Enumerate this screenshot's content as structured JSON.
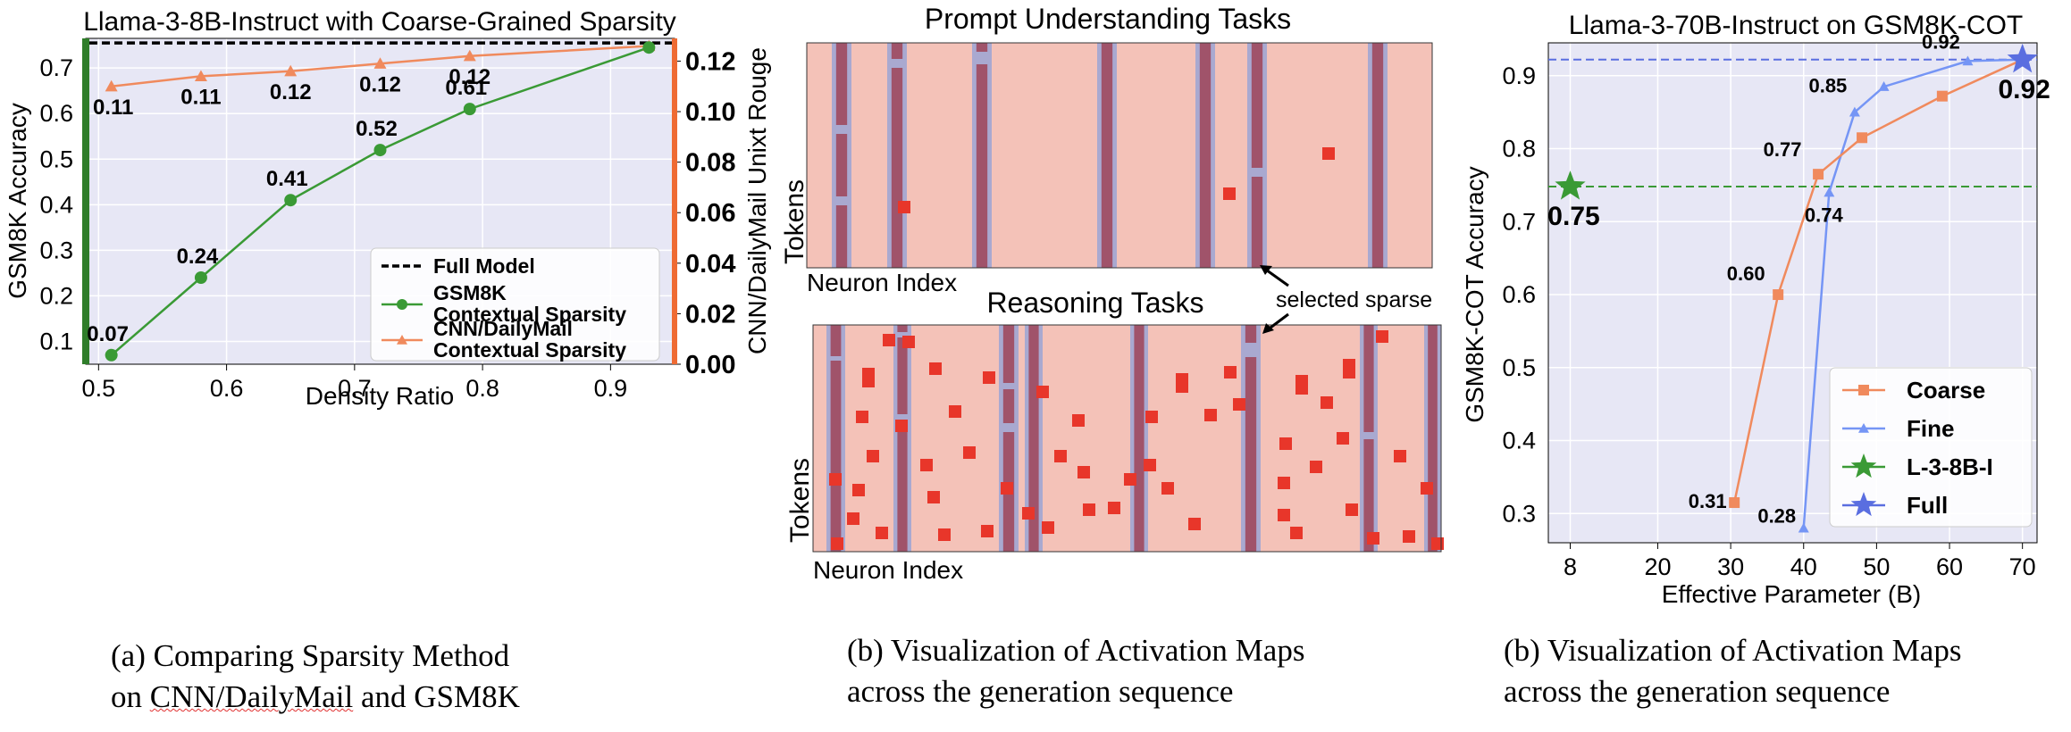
{
  "captions": {
    "a_line1": "(a) Comparing Sparsity Method",
    "a_line2_prefix": "on ",
    "a_line2_mark": "CNN/DailyMail",
    "a_line2_suffix": " and GSM8K",
    "b_line1": "(b) Visualization of Activation Maps",
    "b_line2": "across the generation sequence",
    "c_line1": "(b) Visualization of Activation Maps",
    "c_line2": "across the generation sequence"
  },
  "heatmaps": {
    "top_title": "Prompt Understanding Tasks",
    "bottom_title": "Reasoning Tasks",
    "ylabel": "Tokens",
    "xlabel": "Neuron Index",
    "annotation": "selected sparse",
    "colors": {
      "bg": "#f4c2b8",
      "band": "#a9a9d0",
      "active": "#a0536a",
      "dot": "#e8362a"
    }
  },
  "chart_data": [
    {
      "type": "line",
      "title": "Llama-3-8B-Instruct with Coarse-Grained Sparsity",
      "xlabel": "Density Ratio",
      "ylabel": "GSM8K Accuracy",
      "y2label": "CNN/DailyMail Unixt Rouge",
      "xlim": [
        0.49,
        0.95
      ],
      "ylim": [
        0.05,
        0.765
      ],
      "y2lim": [
        0.0,
        0.129
      ],
      "xticks": [
        0.5,
        0.6,
        0.7,
        0.8,
        0.9
      ],
      "yticks": [
        0.1,
        0.2,
        0.3,
        0.4,
        0.5,
        0.6,
        0.7
      ],
      "y2ticks": [
        0.0,
        0.02,
        0.04,
        0.06,
        0.08,
        0.1,
        0.12
      ],
      "grid": true,
      "legend_position": "lower-right",
      "full_model_y": 0.755,
      "series": [
        {
          "name": "Full Model",
          "color": "#000000",
          "style": "dashed"
        },
        {
          "name": "GSM8K\nContextual Sparsity",
          "color": "#3a9a35",
          "marker": "circle",
          "axis": "left",
          "x": [
            0.51,
            0.58,
            0.65,
            0.72,
            0.79,
            0.93
          ],
          "y": [
            0.07,
            0.24,
            0.41,
            0.52,
            0.61,
            0.745
          ],
          "labels": [
            "0.07",
            "0.24",
            "0.41",
            "0.52",
            "0.61",
            ""
          ]
        },
        {
          "name": "CNN/DailyMail\nContextual Sparsity",
          "color": "#f08a5d",
          "marker": "triangle",
          "axis": "right",
          "x": [
            0.51,
            0.58,
            0.65,
            0.72,
            0.79,
            0.93
          ],
          "y": [
            0.11,
            0.114,
            0.116,
            0.119,
            0.122,
            0.126
          ],
          "labels": [
            "0.11",
            "0.11",
            "0.12",
            "0.12",
            "0.12",
            ""
          ]
        }
      ]
    },
    {
      "type": "line",
      "title": "Llama-3-70B-Instruct on GSM8K-COT",
      "xlabel": "Effective Parameter (B)",
      "ylabel": "GSM8K-COT Accuracy",
      "xlim": [
        5,
        72
      ],
      "ylim": [
        0.26,
        0.945
      ],
      "xticks": [
        8,
        20,
        30,
        40,
        50,
        60,
        70
      ],
      "yticks": [
        0.3,
        0.4,
        0.5,
        0.6,
        0.7,
        0.8,
        0.9
      ],
      "grid": true,
      "legend_position": "lower-right",
      "ref_lines": [
        {
          "y": 0.748,
          "color": "#3a9a35"
        },
        {
          "y": 0.922,
          "color": "#5a6ee0"
        }
      ],
      "series": [
        {
          "name": "Coarse",
          "color": "#f08a5d",
          "marker": "square",
          "x": [
            30.5,
            36.5,
            42,
            48,
            59,
            70
          ],
          "y": [
            0.315,
            0.6,
            0.765,
            0.815,
            0.872,
            0.922
          ],
          "labels": [
            "0.31",
            "0.60",
            "0.77",
            "",
            "",
            ""
          ]
        },
        {
          "name": "Fine",
          "color": "#7595f5",
          "marker": "triangle",
          "x": [
            40,
            43.5,
            47,
            51,
            62.5,
            70
          ],
          "y": [
            0.28,
            0.74,
            0.85,
            0.885,
            0.92,
            0.922
          ],
          "labels": [
            "0.28",
            "0.74",
            "0.85",
            "",
            "0.92",
            ""
          ]
        },
        {
          "name": "L-3-8B-I",
          "color": "#3a9a35",
          "marker": "star",
          "x": [
            8
          ],
          "y": [
            0.748
          ],
          "labels": [
            "0.75"
          ]
        },
        {
          "name": "Full",
          "color": "#5a6ee0",
          "marker": "star",
          "x": [
            70
          ],
          "y": [
            0.922
          ],
          "labels": [
            "0.92"
          ]
        }
      ]
    }
  ]
}
